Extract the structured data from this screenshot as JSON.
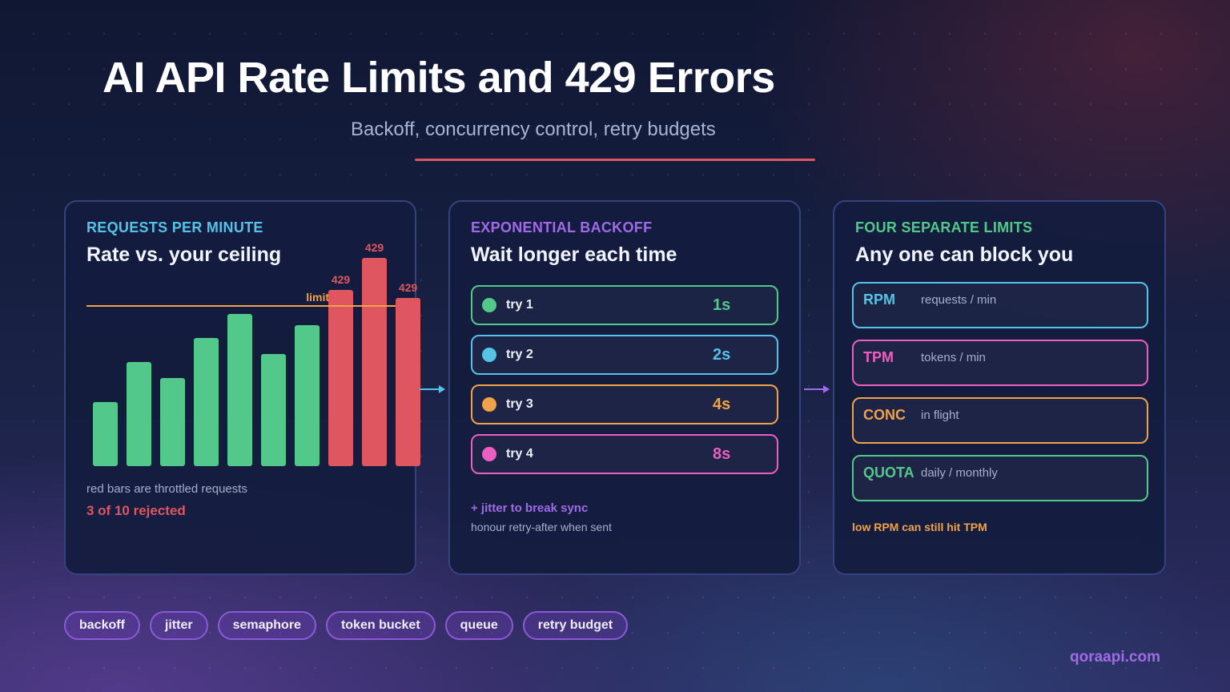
{
  "header": {
    "title": "AI API Rate Limits and 429 Errors",
    "subtitle": "Backoff, concurrency control, retry budgets"
  },
  "colors": {
    "accent_red": "#e05660",
    "green": "#52c98a",
    "blue": "#56c2e6",
    "orange": "#f0a24a",
    "pink": "#ec5fc1",
    "purple": "#a06ae8",
    "limit_line": "#f0a24a"
  },
  "card_requests": {
    "kicker": "REQUESTS PER MINUTE",
    "heading": "Rate vs. your ceiling",
    "limit_label": "limit",
    "note": "red bars are throttled requests",
    "rejected_summary": "3 of 10 rejected"
  },
  "chart_data": {
    "type": "bar",
    "title": "",
    "xlabel": "",
    "ylabel": "",
    "values": [
      40,
      65,
      55,
      80,
      95,
      70,
      88,
      110,
      130,
      105
    ],
    "throttled": [
      false,
      false,
      false,
      false,
      false,
      false,
      false,
      true,
      true,
      true
    ],
    "limit": 100,
    "ylim": [
      0,
      130
    ],
    "data_labels": [
      "",
      "",
      "",
      "",
      "",
      "",
      "",
      "429",
      "429",
      "429"
    ],
    "grid": false
  },
  "card_backoff": {
    "kicker": "EXPONENTIAL BACKOFF",
    "heading": "Wait longer each time",
    "tries": [
      {
        "label": "try 1",
        "time": "1s",
        "color": "#52c98a"
      },
      {
        "label": "try 2",
        "time": "2s",
        "color": "#56c2e6"
      },
      {
        "label": "try 3",
        "time": "4s",
        "color": "#f0a24a"
      },
      {
        "label": "try 4",
        "time": "8s",
        "color": "#ec5fc1"
      }
    ],
    "jitter_note": "+ jitter to break sync",
    "retry_after_note": "honour retry-after when sent"
  },
  "card_limits": {
    "kicker": "FOUR SEPARATE LIMITS",
    "heading": "Any one can block you",
    "limits": [
      {
        "code": "RPM",
        "desc": "requests / min",
        "color": "#56c2e6"
      },
      {
        "code": "TPM",
        "desc": "tokens / min",
        "color": "#ec5fc1"
      },
      {
        "code": "CONC",
        "desc": "in flight",
        "color": "#f0a24a"
      },
      {
        "code": "QUOTA",
        "desc": "daily / monthly",
        "color": "#52c98a"
      }
    ],
    "footnote": "low RPM can still hit TPM"
  },
  "tags": [
    "backoff",
    "jitter",
    "semaphore",
    "token bucket",
    "queue",
    "retry budget"
  ],
  "footer": {
    "url": "qoraapi.com"
  }
}
